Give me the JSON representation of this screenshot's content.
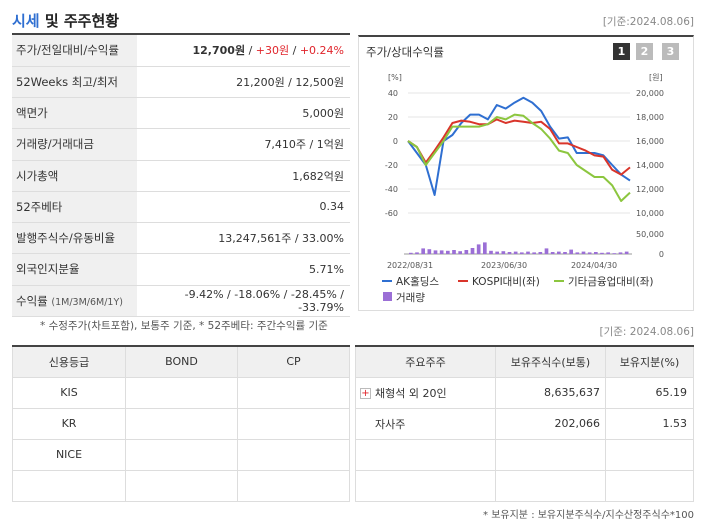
{
  "header": {
    "title_blue": "시세",
    "title_rest": " 및 주주현황",
    "base_date": "[기준:2024.08.06]"
  },
  "info": {
    "price_label": "주가/전일대비/수익률",
    "price": "12,700원",
    "change": "+30원",
    "change_pct": "+0.24%",
    "sep": " / ",
    "wk52_label": "52Weeks 최고/최저",
    "wk52": "21,200원 / 12,500원",
    "par_label": "액면가",
    "par": "5,000원",
    "volume_label": "거래량/거래대금",
    "volume": "7,410주 / 1억원",
    "mcap_label": "시가총액",
    "mcap": "1,682억원",
    "beta_label": "52주베타",
    "beta": "0.34",
    "shares_label": "발행주식수/유동비율",
    "shares": "13,247,561주 / 33.00%",
    "foreign_label": "외국인지분율",
    "foreign": "5.71%",
    "return_label": "수익률",
    "return_period": "(1M/3M/6M/1Y)",
    "r1": "-9.42%",
    "r2": "-18.06%",
    "r3": "-28.45%",
    "r4": "-33.79%",
    "note": "* 수정주가(차트포함), 보통주 기준, * 52주베타: 주간수익률 기준"
  },
  "chart_panel": {
    "title": "주가/상대수익률",
    "btn1": "1",
    "btn2": "2",
    "btn3": "3"
  },
  "chart_data": {
    "type": "line",
    "left_unit": "[%]",
    "right_unit": "[원]",
    "left_ticks": [
      40,
      20,
      0,
      -20,
      -40,
      -60
    ],
    "right_ticks": [
      "20,000",
      "18,000",
      "16,000",
      "14,000",
      "12,000",
      "10,000"
    ],
    "vol_ticks": [
      "50,000",
      "0"
    ],
    "x_labels": [
      "2022/08/31",
      "2023/06/30",
      "2024/04/30"
    ],
    "ylim_left": [
      -60,
      40
    ],
    "series": [
      {
        "name": "AK홀딩스",
        "color": "#2f6fd1",
        "values": [
          0,
          -10,
          -20,
          -45,
          0,
          5,
          15,
          22,
          22,
          18,
          30,
          27,
          32,
          36,
          32,
          25,
          12,
          2,
          3,
          -10,
          -10,
          -10,
          -12,
          -20,
          -28,
          -33
        ]
      },
      {
        "name": "KOSPI대비(좌)",
        "color": "#d9352b",
        "values": [
          0,
          -5,
          -18,
          -8,
          3,
          15,
          17,
          16,
          14,
          14,
          18,
          15,
          17,
          16,
          15,
          16,
          10,
          -2,
          -2,
          -5,
          -8,
          -12,
          -13,
          -24,
          -28,
          -22
        ]
      },
      {
        "name": "기타금융업대비(좌)",
        "color": "#8cc63f",
        "values": [
          0,
          -5,
          -20,
          -10,
          0,
          12,
          12,
          12,
          12,
          14,
          20,
          18,
          22,
          21,
          15,
          10,
          2,
          -8,
          -10,
          -20,
          -25,
          -30,
          -30,
          -37,
          -50,
          -43
        ]
      }
    ],
    "volume_name": "거래량",
    "volume_color": "#9b6fd6",
    "volume": [
      3000,
      4000,
      14000,
      12000,
      9000,
      9000,
      8000,
      10000,
      7000,
      10000,
      15000,
      24000,
      29000,
      8000,
      6000,
      7000,
      5000,
      6000,
      4000,
      6000,
      4000,
      5000,
      14000,
      5000,
      6000,
      5000,
      11000,
      4000,
      6000,
      4000,
      5000,
      3000,
      4000,
      2000,
      4000,
      6000
    ],
    "volume_max": 50000
  },
  "credit": {
    "headers": [
      "신용등급",
      "BOND",
      "CP"
    ],
    "rows": [
      {
        "name": "KIS",
        "bond": "",
        "cp": ""
      },
      {
        "name": "KR",
        "bond": "",
        "cp": ""
      },
      {
        "name": "NICE",
        "bond": "",
        "cp": ""
      },
      {
        "name": "",
        "bond": "",
        "cp": ""
      }
    ]
  },
  "holders": {
    "base_date": "[기준: 2024.08.06]",
    "headers": [
      "주요주주",
      "보유주식수(보통)",
      "보유지분(%)"
    ],
    "rows": [
      {
        "name": "채형석 외 20인",
        "shares": "8,635,637",
        "pct": "65.19",
        "expandable": true
      },
      {
        "name": "자사주",
        "shares": "202,066",
        "pct": "1.53",
        "expandable": false
      },
      {
        "name": "",
        "shares": "",
        "pct": "",
        "expandable": false
      },
      {
        "name": "",
        "shares": "",
        "pct": "",
        "expandable": false
      }
    ],
    "note": "* 보유지분 : 보유지분주식수/지수산정주식수*100"
  }
}
